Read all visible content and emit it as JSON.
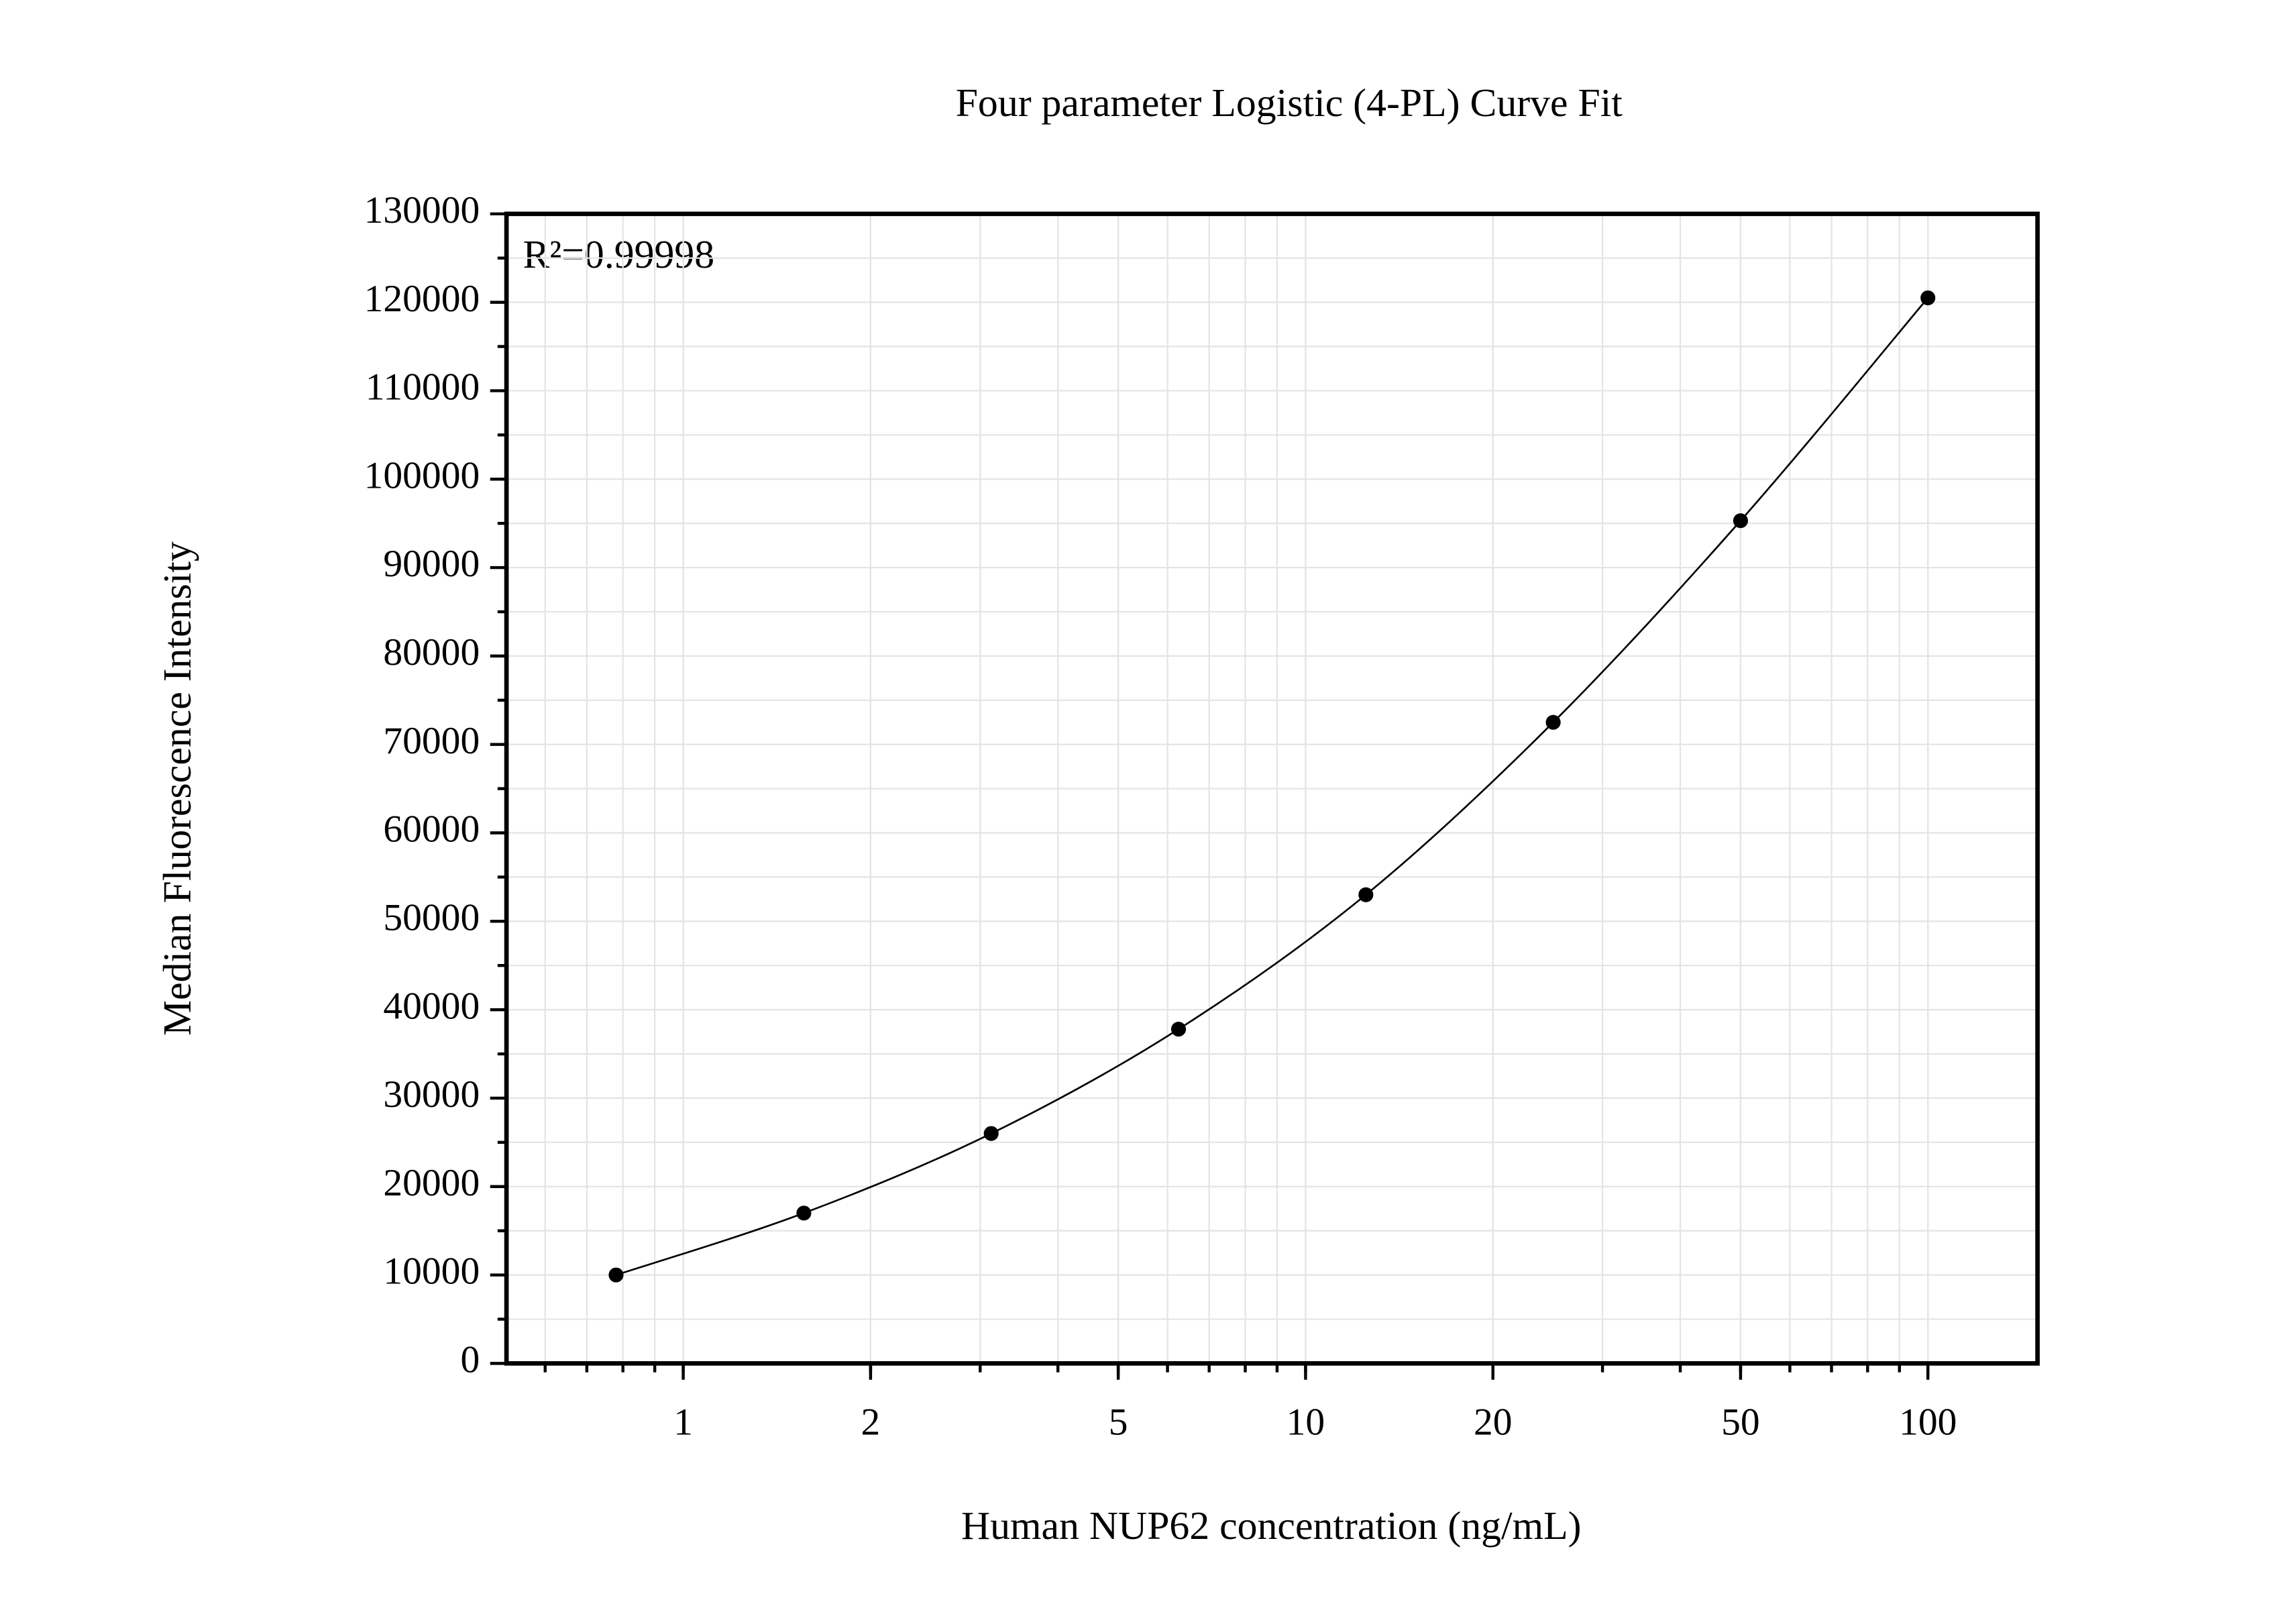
{
  "chart_data": {
    "type": "scatter",
    "title": "Four parameter Logistic (4-PL) Curve Fit",
    "xlabel": "Human NUP62 concentration (ng/mL)",
    "ylabel": "Median Fluorescence Intensity",
    "annotation": "R²=0.99998",
    "x_scale": "log",
    "grid": true,
    "x": [
      0.78,
      1.5625,
      3.125,
      6.25,
      12.5,
      25,
      50,
      100
    ],
    "series": [
      {
        "color": "#000000",
        "values": [
          10000,
          17000,
          26000,
          37800,
          53000,
          72500,
          95300,
          120500
        ]
      }
    ],
    "xlim": [
      0.52,
      150
    ],
    "ylim": [
      0,
      130000
    ],
    "xticks": [
      1,
      2,
      5,
      10,
      20,
      50,
      100
    ],
    "yticks": [
      0,
      10000,
      20000,
      30000,
      40000,
      50000,
      60000,
      70000,
      80000,
      90000,
      100000,
      110000,
      120000,
      130000
    ]
  }
}
